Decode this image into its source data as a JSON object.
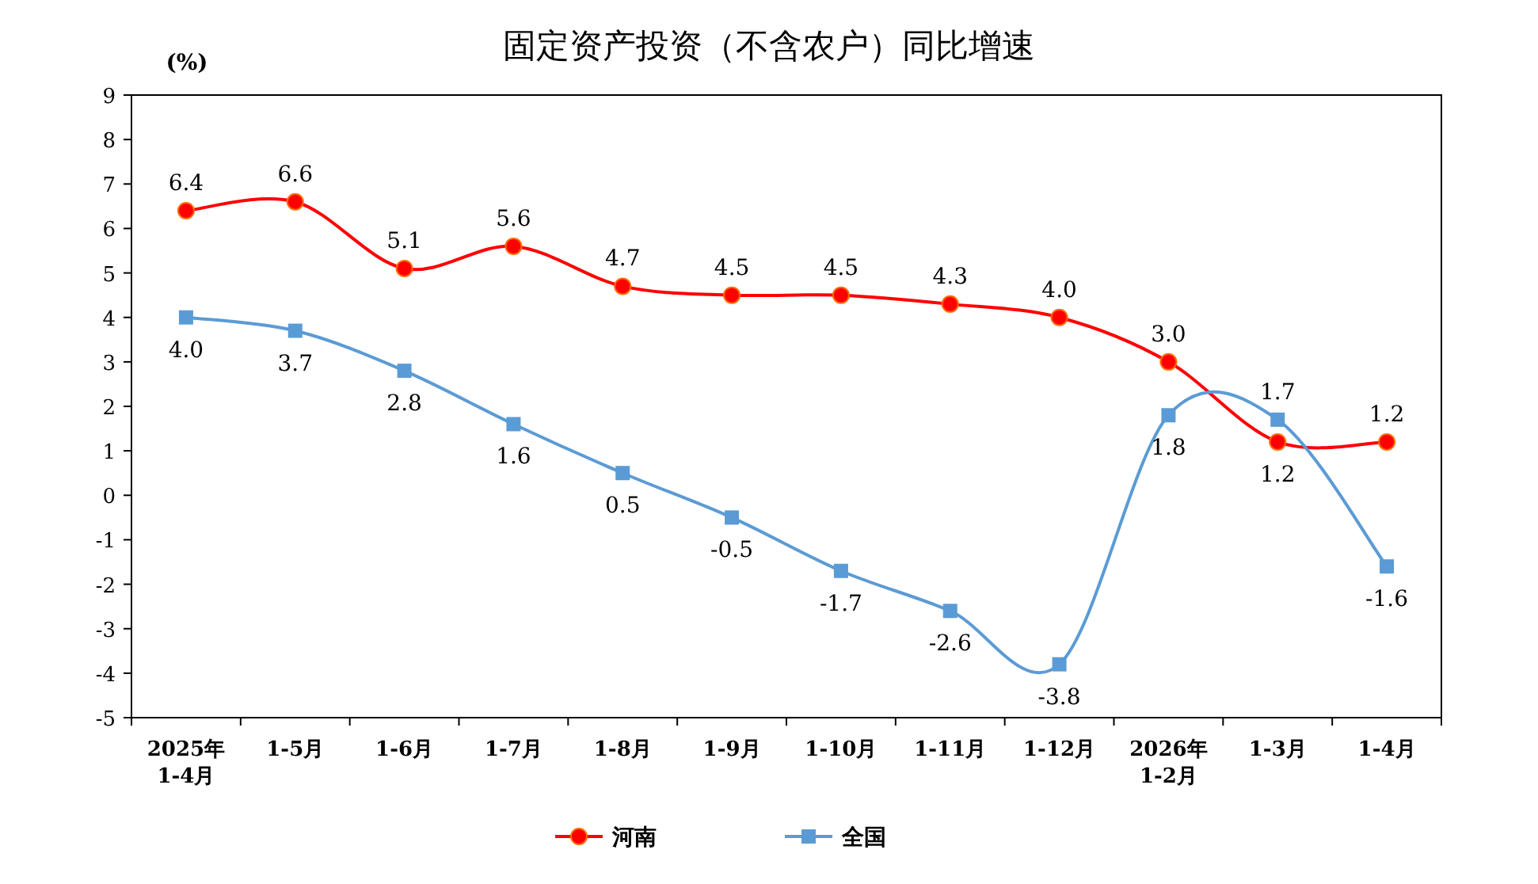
{
  "chart_data": {
    "type": "line",
    "title": "固定资产投资（不含农户）同比增速",
    "ylabel": "(%)",
    "categories": [
      "2025年\n1-4月",
      "1-5月",
      "1-6月",
      "1-7月",
      "1-8月",
      "1-9月",
      "1-10月",
      "1-11月",
      "1-12月",
      "2026年\n1-2月",
      "1-3月",
      "1-4月"
    ],
    "series": [
      {
        "name": "河南",
        "color": "#ff0000",
        "marker": "circle",
        "values": [
          6.4,
          6.6,
          5.1,
          5.6,
          4.7,
          4.5,
          4.5,
          4.3,
          4.0,
          3.0,
          1.2,
          1.2
        ],
        "value_labels": [
          "6.4",
          "6.6",
          "5.1",
          "5.6",
          "4.7",
          "4.5",
          "4.5",
          "4.3",
          "4.0",
          "3.0",
          "1.2",
          "1.2"
        ]
      },
      {
        "name": "全国",
        "color": "#5b9bd5",
        "marker": "square",
        "values": [
          4.0,
          3.7,
          2.8,
          1.6,
          0.5,
          -0.5,
          -1.7,
          -2.6,
          -3.8,
          1.8,
          1.7,
          -1.6
        ],
        "value_labels": [
          "4.0",
          "3.7",
          "2.8",
          "1.6",
          "0.5",
          "-0.5",
          "-1.7",
          "-2.6",
          "-3.8",
          "1.8",
          "1.7",
          "-1.6"
        ]
      }
    ],
    "ylim": [
      -5,
      9
    ],
    "yticks": [
      -5,
      -4,
      -3,
      -2,
      -1,
      0,
      1,
      2,
      3,
      4,
      5,
      6,
      7,
      8,
      9
    ],
    "legend": "bottom",
    "grid": false
  }
}
